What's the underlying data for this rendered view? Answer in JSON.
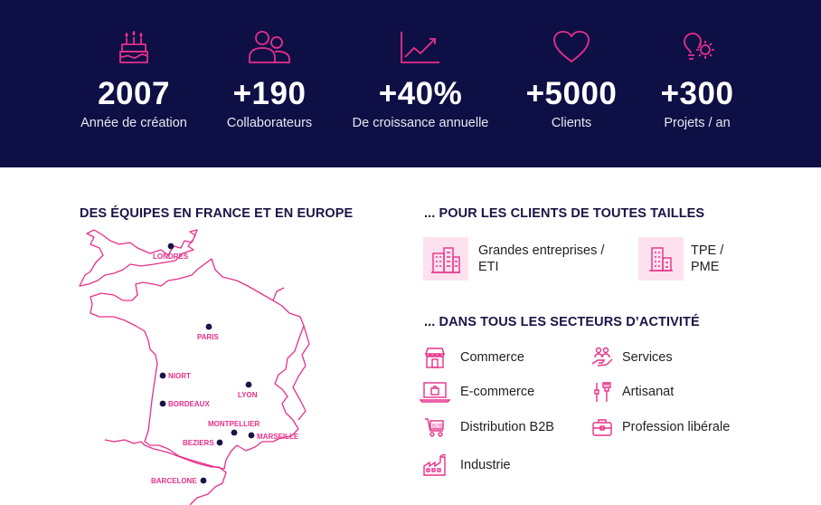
{
  "stats": [
    {
      "value": "2007",
      "label": "Année de création",
      "icon": "birthday-cake-icon"
    },
    {
      "value": "+190",
      "label": "Collaborateurs",
      "icon": "people-icon"
    },
    {
      "value": "+40%",
      "label": "De croissance annuelle",
      "icon": "growth-chart-icon"
    },
    {
      "value": "+5000",
      "label": "Clients",
      "icon": "heart-icon"
    },
    {
      "value": "+300",
      "label": "Projets / an",
      "icon": "idea-gear-icon"
    }
  ],
  "teams_heading": "DES ÉQUIPES EN FRANCE ET EN EUROPE",
  "cities": [
    "LONDRES",
    "PARIS",
    "NIORT",
    "LYON",
    "BORDEAUX",
    "MONTPELLIER",
    "BEZIERS",
    "MARSEILLE",
    "BARCELONE"
  ],
  "clients_heading": "... POUR LES CLIENTS DE TOUTES TAILLES",
  "client_sizes": [
    {
      "label": "Grandes entreprises / ETI",
      "icon": "office-buildings-icon"
    },
    {
      "label": "TPE / PME",
      "icon": "small-building-icon"
    }
  ],
  "sectors_heading": "... DANS TOUS LES SECTEURS D’ACTIVITÉ",
  "sectors": [
    {
      "label": "Commerce",
      "icon": "shop-icon"
    },
    {
      "label": "Services",
      "icon": "service-hand-icon"
    },
    {
      "label": "E-commerce",
      "icon": "laptop-shopping-icon"
    },
    {
      "label": "Artisanat",
      "icon": "tools-icon"
    },
    {
      "label": "Distribution B2B",
      "icon": "b2b-cart-icon"
    },
    {
      "label": "Profession libérale",
      "icon": "briefcase-icon"
    },
    {
      "label": "Industrie",
      "icon": "factory-icon"
    }
  ],
  "colors": {
    "navy": "#0e0f45",
    "pink": "#e6308a",
    "pink_light": "#fde1ee"
  }
}
